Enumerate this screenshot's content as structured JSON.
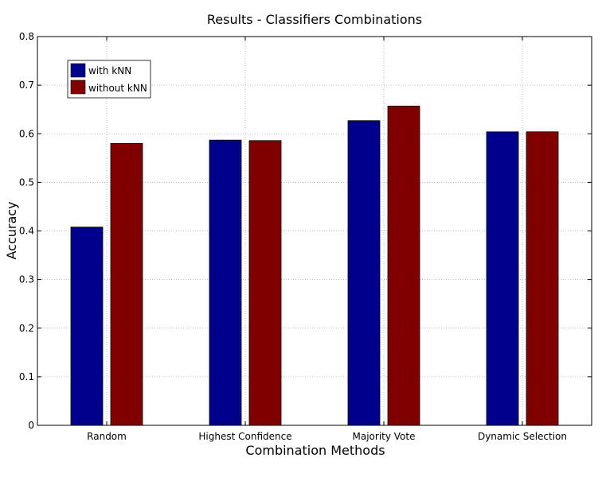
{
  "chart_data": {
    "type": "bar",
    "title": "Results - Classifiers Combinations",
    "xlabel": "Combination Methods",
    "ylabel": "Accuracy",
    "categories": [
      "Random",
      "Highest Confidence",
      "Majority Vote",
      "Dynamic Selection"
    ],
    "series": [
      {
        "name": "with kNN",
        "color": "#00008c",
        "values": [
          0.408,
          0.587,
          0.627,
          0.604
        ]
      },
      {
        "name": "without kNN",
        "color": "#800000",
        "values": [
          0.58,
          0.586,
          0.657,
          0.604
        ]
      }
    ],
    "ylim": [
      0,
      0.8
    ],
    "yticks": [
      0,
      0.1,
      0.2,
      0.3,
      0.4,
      0.5,
      0.6,
      0.7,
      0.8
    ],
    "ytick_labels": [
      "0",
      "0.1",
      "0.2",
      "0.3",
      "0.4",
      "0.5",
      "0.6",
      "0.7",
      "0.8"
    ],
    "grid": true,
    "legend_position": "top-left"
  }
}
